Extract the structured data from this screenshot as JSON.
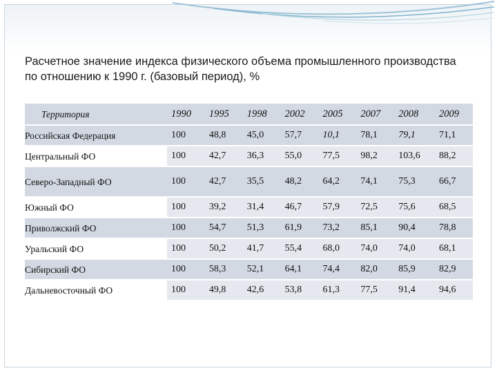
{
  "title": "Расчетное значение индекса физического объема промышленного производства по отношению к 1990 г. (базовый период), %",
  "table": {
    "corner": "Территория",
    "years": [
      "1990",
      "1995",
      "1998",
      "2002",
      "2005",
      "2007",
      "2008",
      "2009"
    ],
    "rows": [
      {
        "name": "Российская Федерация",
        "values": [
          "100",
          "48,8",
          "45,0",
          "57,7",
          "10,1",
          "78,1",
          "79,1",
          "71,1"
        ]
      },
      {
        "name": "Центральный ФО",
        "values": [
          "100",
          "42,7",
          "36,3",
          "55,0",
          "77,5",
          "98,2",
          "103,6",
          "88,2"
        ]
      },
      {
        "name": "Северо-Западный ФО",
        "values": [
          "100",
          "42,7",
          "35,5",
          "48,2",
          "64,2",
          "74,1",
          "75,3",
          "66,7"
        ]
      },
      {
        "name": "Южный ФО",
        "values": [
          "100",
          "39,2",
          "31,4",
          "46,7",
          "57,9",
          "72,5",
          "75,6",
          "68,5"
        ]
      },
      {
        "name": "Приволжский ФО",
        "values": [
          "100",
          "54,7",
          "51,3",
          "61,9",
          "73,2",
          "85,1",
          "90,4",
          "78,8"
        ]
      },
      {
        "name": "Уральский ФО",
        "values": [
          "100",
          "50,2",
          "41,7",
          "55,4",
          "68,0",
          "74,0",
          "74,0",
          "68,1"
        ]
      },
      {
        "name": "Сибирский ФО",
        "values": [
          "100",
          "58,3",
          "52,1",
          "64,1",
          "74,4",
          "82,0",
          "85,9",
          "82,9"
        ]
      },
      {
        "name": "Дальневосточный ФО",
        "values": [
          "100",
          "49,8",
          "42,6",
          "53,8",
          "61,3",
          "77,5",
          "91,4",
          "94,6"
        ]
      }
    ]
  },
  "colors": {
    "cell_shade": "#e5e8ee",
    "row_shade": "#d3d9e3",
    "accent": "#7fb2cc"
  }
}
